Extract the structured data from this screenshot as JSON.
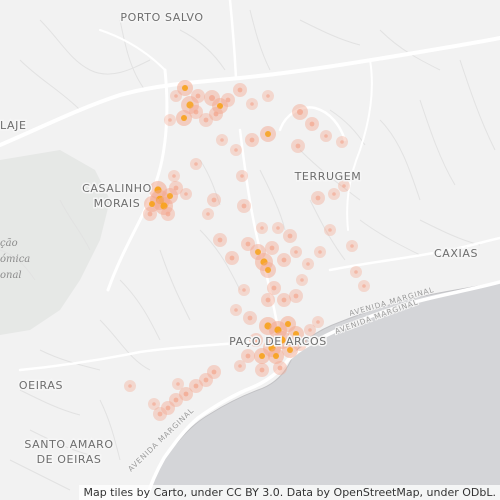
{
  "places": {
    "porto_salvo": "PORTO SALVO",
    "laje": "LAJE",
    "casalinho_line1": "CASALINHO",
    "casalinho_line2": "MORAIS",
    "terrugem": "TERRUGEM",
    "caxias": "CAXIAS",
    "paco_de_arcos": "PAÇO DE ARCOS",
    "oeiras": "OEIRAS",
    "santo_amaro_line1": "SANTO AMARO",
    "santo_amaro_line2": "DE OEIRAS"
  },
  "roads": {
    "avenida_marginal_east": "AVENIDA MARGINAL",
    "avenida_marginal_paco": "AVENIDA MARGINAL",
    "avenida_marginal_west": "AVENIDA MARGINAL"
  },
  "park_fragment": {
    "line1": "ção",
    "line2": "ómica",
    "line3": "onal"
  },
  "attribution": "Map tiles by Carto, under CC BY 3.0. Data by OpenStreetMap, under ODbL.",
  "colors": {
    "land": "#f2f2f2",
    "water": "#d4d5d8",
    "road": "#ffffff",
    "point_core": "#f7a21b",
    "point_halo": "#f3a890"
  }
}
